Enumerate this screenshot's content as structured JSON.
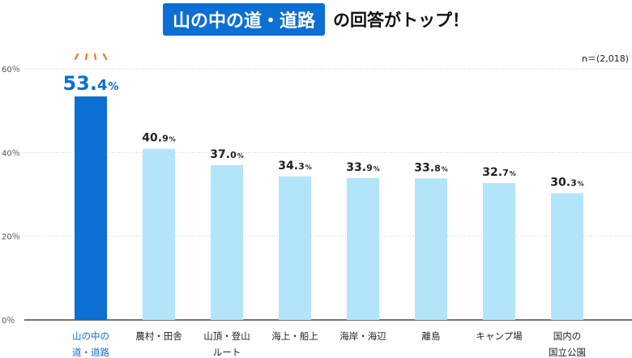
{
  "title": {
    "highlight": "山の中の道・道路",
    "rest": "の回答がトップ！"
  },
  "sample_note": "n＝(2,018)",
  "colors": {
    "top": "#0b6fd3",
    "other": "#b3e5fa",
    "burst": "#f07a1a"
  },
  "chart_data": {
    "type": "bar",
    "categories": [
      [
        "山の中の",
        "道・道路"
      ],
      [
        "農村・田舎"
      ],
      [
        "山頂・登山",
        "ルート"
      ],
      [
        "海上・船上"
      ],
      [
        "海岸・海辺"
      ],
      [
        "離島"
      ],
      [
        "キャンプ場"
      ],
      [
        "国内の",
        "国立公園"
      ]
    ],
    "values": [
      53.4,
      40.9,
      37.0,
      34.3,
      33.9,
      33.8,
      32.7,
      30.3
    ],
    "value_labels": [
      "53.4",
      "40.9",
      "37.0",
      "34.3",
      "33.9",
      "33.8",
      "32.7",
      "30.3"
    ],
    "unit": "%",
    "ylim": [
      0,
      60
    ],
    "yticks": [
      0,
      20,
      40,
      60
    ],
    "ytick_labels": [
      "0％",
      "20％",
      "40％",
      "60％"
    ],
    "grid": true,
    "highlight_index": 0
  }
}
